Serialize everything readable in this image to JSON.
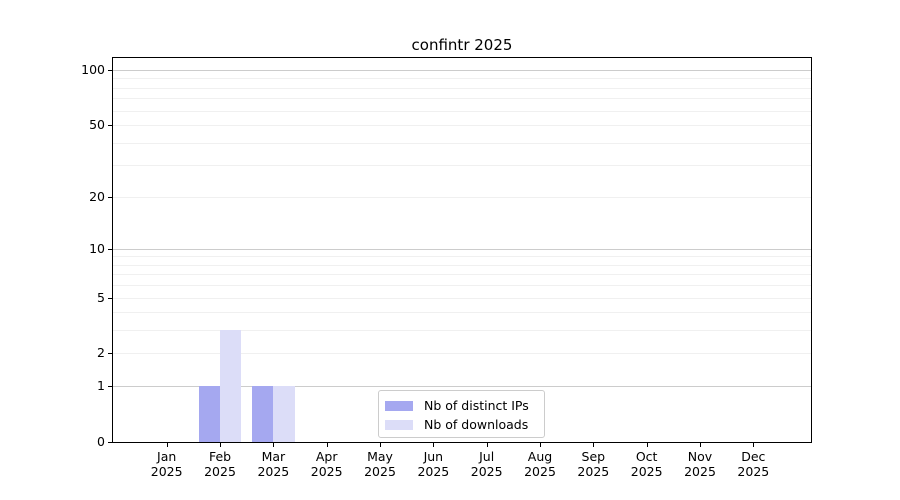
{
  "title": "confintr 2025",
  "chart_data": {
    "type": "bar",
    "title": "confintr 2025",
    "x_axis": {
      "months": [
        "Jan",
        "Feb",
        "Mar",
        "Apr",
        "May",
        "Jun",
        "Jul",
        "Aug",
        "Sep",
        "Oct",
        "Nov",
        "Dec"
      ],
      "year": "2025"
    },
    "y_axis": {
      "scale": "log1p",
      "ylim": [
        0,
        116
      ],
      "tick_labels": [
        "0",
        "1",
        "2",
        "5",
        "10",
        "20",
        "50",
        "100"
      ],
      "tick_values": [
        0,
        1,
        2,
        5,
        10,
        20,
        50,
        100
      ],
      "major_grid_values": [
        1,
        10,
        100
      ],
      "minor_grid_values": [
        2,
        3,
        4,
        5,
        6,
        7,
        8,
        9,
        20,
        30,
        40,
        50,
        60,
        70,
        80,
        90
      ]
    },
    "series": [
      {
        "name": "Nb of distinct IPs",
        "color": "#a5a8f0",
        "values": [
          0,
          1,
          1,
          0,
          0,
          0,
          0,
          0,
          0,
          0,
          0,
          0
        ]
      },
      {
        "name": "Nb of downloads",
        "color": "#dcddf8",
        "values": [
          0,
          3,
          1,
          0,
          0,
          0,
          0,
          0,
          0,
          0,
          0,
          0
        ]
      }
    ],
    "legend": {
      "position": "lower center",
      "entries": [
        "Nb of distinct IPs",
        "Nb of downloads"
      ]
    },
    "grid": "on",
    "colors": {
      "major_grid": "#cccccc",
      "minor_grid": "#f0f0f0",
      "spine": "#000000",
      "background": "#ffffff",
      "text": "#000000",
      "legend_border": "#cccccc"
    }
  }
}
